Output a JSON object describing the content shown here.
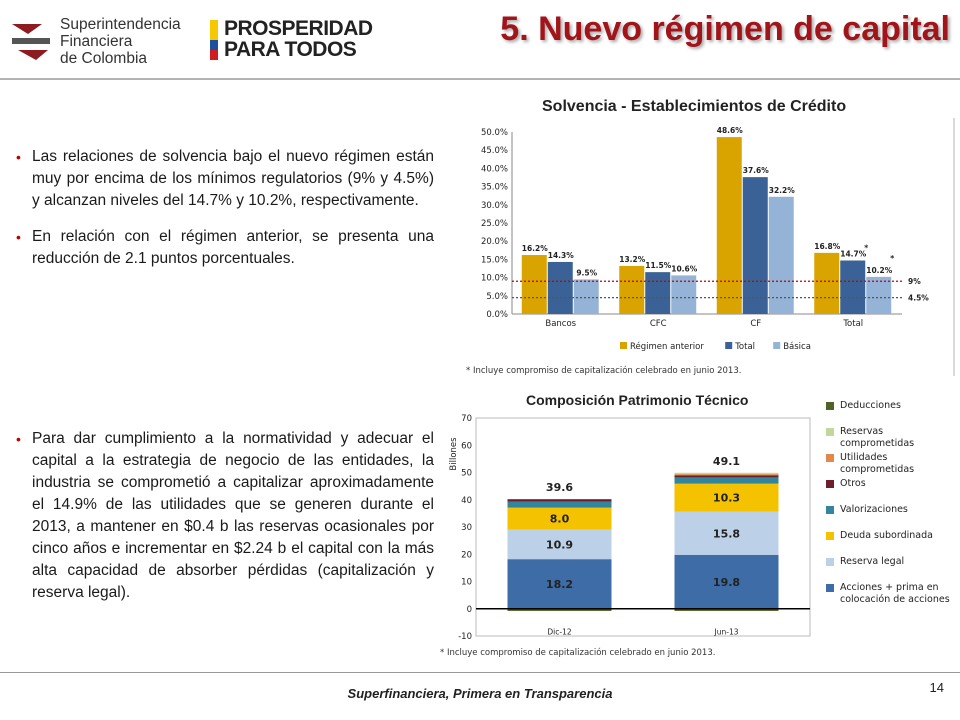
{
  "header": {
    "org_logo_lines": [
      "Superintendencia",
      "Financiera",
      "de Colombia"
    ],
    "campaign_logo_lines": [
      "PROSPERIDAD",
      "PARA TODOS"
    ],
    "title": "5. Nuevo régimen de capital"
  },
  "bullets_top": [
    "Las relaciones de solvencia bajo el nuevo régimen están muy por encima de los mínimos regulatorios (9% y 4.5%) y alcanzan niveles del 14.7% y 10.2%, respectivamente.",
    "En relación con el régimen anterior, se presenta una reducción de 2.1 puntos porcentuales."
  ],
  "bullets_bottom": [
    "Para dar cumplimiento a la normatividad y adecuar el capital a la estrategia de negocio de las entidades, la industria se comprometió a capitalizar aproximadamente el 14.9% de las utilidades que se generen durante el 2013, a mantener en $0.4 b las reservas ocasionales por cinco años e incrementar en $2.24 b el capital con la más alta capacidad de absorber pérdidas (capitalización y reserva legal)."
  ],
  "footer": {
    "text": "Superfinanciera, Primera en Transparencia",
    "page": "14"
  },
  "colors": {
    "title_red": "#a0141a",
    "bullet_red": "#c00000"
  },
  "chart_data": [
    {
      "type": "bar",
      "title": "Solvencia - Establecimientos de Crédito",
      "categories": [
        "Bancos",
        "CFC",
        "CF",
        "Total"
      ],
      "series": [
        {
          "name": "Régimen anterior",
          "color": "#d9a400",
          "values": [
            16.2,
            13.2,
            48.6,
            16.8
          ],
          "labels": [
            "16.2%",
            "13.2%",
            "48.6%",
            "16.8%"
          ]
        },
        {
          "name": "Total",
          "color": "#3a6296",
          "values": [
            14.3,
            11.5,
            37.6,
            14.7
          ],
          "labels": [
            "14.3%",
            "11.5%",
            "37.6%",
            "14.7%"
          ]
        },
        {
          "name": "Básica",
          "color": "#95b3d7",
          "values": [
            9.5,
            10.6,
            32.2,
            10.2
          ],
          "labels": [
            "9.5%",
            "10.6%",
            "32.2%",
            "10.2%"
          ]
        }
      ],
      "yticks": [
        "0.0%",
        "5.0%",
        "10.0%",
        "15.0%",
        "20.0%",
        "25.0%",
        "30.0%",
        "35.0%",
        "40.0%",
        "45.0%",
        "50.0%"
      ],
      "ylim": [
        0,
        50
      ],
      "reference_lines": [
        {
          "value": 9,
          "label": "9%",
          "color": "#c00000"
        },
        {
          "value": 4.5,
          "label": "4.5%",
          "color": "#555555"
        }
      ],
      "asterisk": "*",
      "note": "* Incluye  compromiso de capitalización  celebrado en junio 2013."
    },
    {
      "type": "bar",
      "title": "Composición Patrimonio Técnico",
      "ylabel": "Billones",
      "categories": [
        "Dic-12",
        "Jun-13"
      ],
      "totals": [
        "39.6",
        "49.1"
      ],
      "ylim": [
        -10,
        70
      ],
      "yticks": [
        "-10",
        "0",
        "10",
        "20",
        "30",
        "40",
        "50",
        "60",
        "70"
      ],
      "series": [
        {
          "name": "Acciones + prima en colocación de acciones",
          "color": "#3d6ca6",
          "values": [
            18.2,
            19.8
          ],
          "labels": [
            "18.2",
            "19.8"
          ]
        },
        {
          "name": "Reserva legal",
          "color": "#bcd0e8",
          "values": [
            10.9,
            15.8
          ],
          "labels": [
            "10.9",
            "15.8"
          ]
        },
        {
          "name": "Deuda subordinada",
          "color": "#f5c200",
          "values": [
            8.0,
            10.3
          ],
          "labels": [
            "8.0",
            "10.3"
          ]
        },
        {
          "name": "Valorizaciones",
          "color": "#31859c",
          "values": [
            2.2,
            2.3
          ],
          "labels": [
            "",
            ""
          ]
        },
        {
          "name": "Otros",
          "color": "#6b1f2a",
          "values": [
            0.9,
            0.8
          ],
          "labels": [
            "",
            ""
          ]
        },
        {
          "name": "Utilidades comprometidas",
          "color": "#e0894a",
          "values": [
            0,
            0.5
          ],
          "labels": [
            "",
            ""
          ]
        },
        {
          "name": "Reservas comprometidas",
          "color": "#c4d79b",
          "values": [
            0,
            0.4
          ],
          "labels": [
            "",
            ""
          ]
        },
        {
          "name": "Deducciones",
          "color": "#4f6228",
          "values": [
            -0.8,
            -0.8
          ],
          "labels": [
            "",
            ""
          ]
        }
      ],
      "legend_order": [
        "Deducciones",
        "Reservas comprometidas",
        "Utilidades comprometidas",
        "Otros",
        "Valorizaciones",
        "Deuda subordinada",
        "Reserva legal",
        "Acciones + prima en colocación de acciones"
      ],
      "note": "* Incluye compromiso de capitalización celebrado en junio 2013."
    }
  ]
}
